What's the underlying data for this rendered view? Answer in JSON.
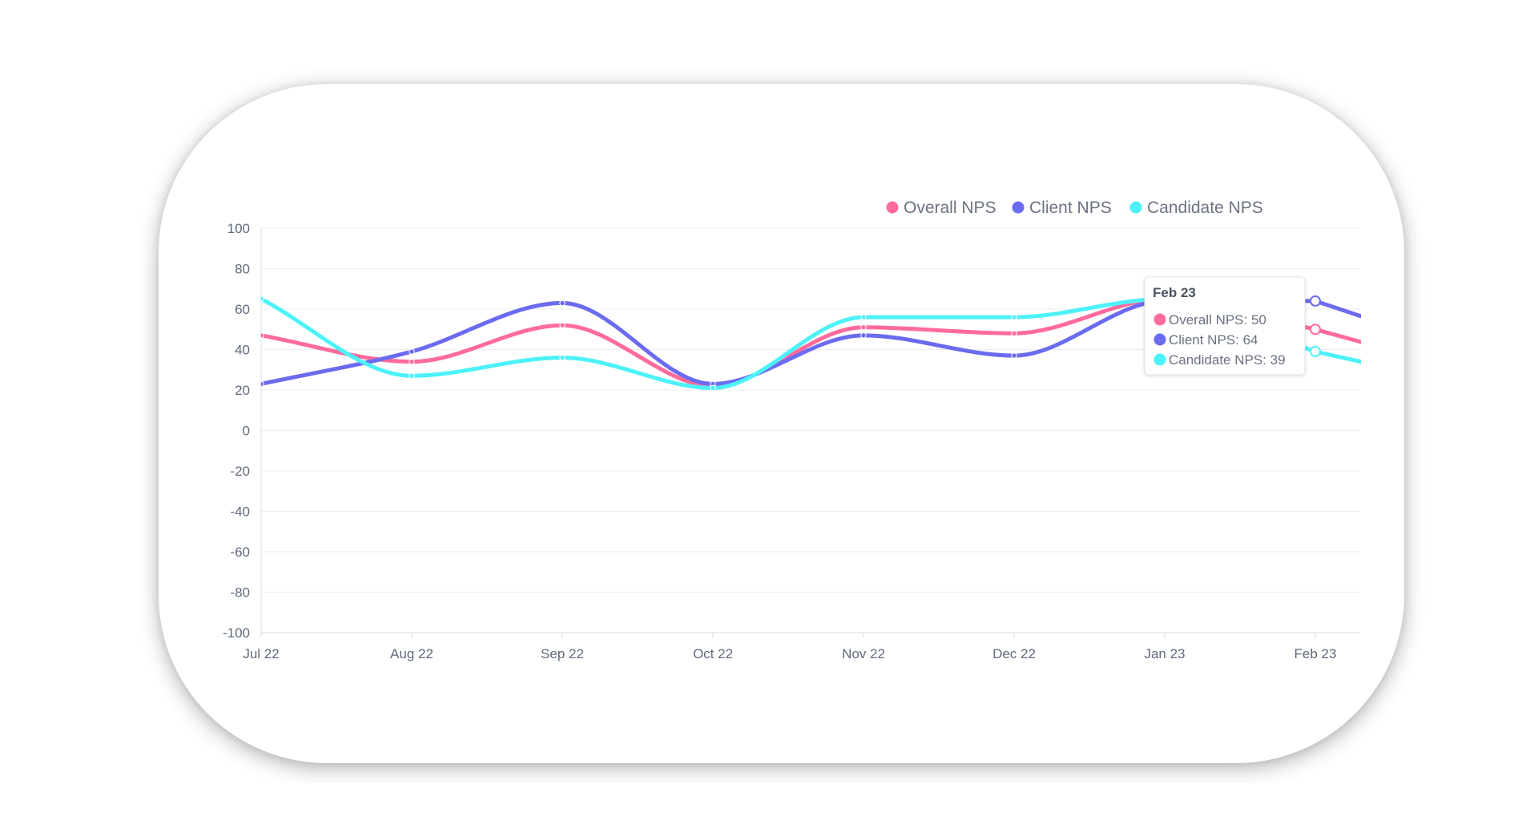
{
  "chart_data": {
    "type": "line",
    "categories": [
      "Jul 22",
      "Aug 22",
      "Sep 22",
      "Oct 22",
      "Nov 22",
      "Dec 22",
      "Jan 23",
      "Feb 23"
    ],
    "series": [
      {
        "name": "Overall NPS",
        "color": "#ff6b9d",
        "values": [
          47,
          34,
          52,
          22,
          51,
          48,
          65,
          50
        ]
      },
      {
        "name": "Client NPS",
        "color": "#6b6bf0",
        "values": [
          23,
          39,
          63,
          23,
          47,
          37,
          64,
          64
        ]
      },
      {
        "name": "Candidate NPS",
        "color": "#4cf2f7",
        "values": [
          65,
          27,
          36,
          21,
          56,
          56,
          65,
          39
        ]
      }
    ],
    "yticks": [
      "100",
      "80",
      "60",
      "40",
      "20",
      "0",
      "-20",
      "-40",
      "-60",
      "-80",
      "-100"
    ],
    "ylim": [
      -100,
      100
    ],
    "grid": true,
    "legend_position": "top-right",
    "tooltip": {
      "title": "Feb 23",
      "lines": [
        "Overall NPS: 50",
        "Client NPS: 64",
        "Candidate NPS: 39"
      ]
    }
  }
}
